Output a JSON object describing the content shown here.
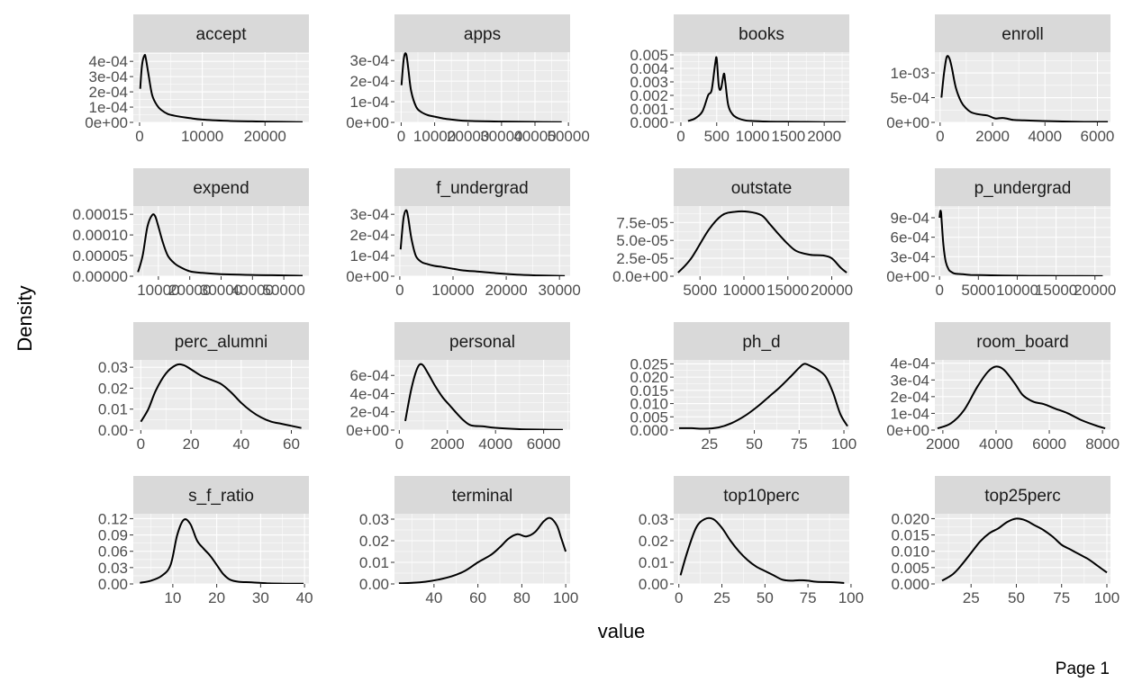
{
  "x_title": "value",
  "y_title": "Density",
  "page_label": "Page 1",
  "chart_data": [
    {
      "type": "line",
      "facet": "accept",
      "xlim": [
        -1000,
        27000
      ],
      "ylim": [
        0,
        0.00046
      ],
      "xticks": [
        0,
        10000,
        20000
      ],
      "xtick_labels": [
        "0",
        "10000",
        "20000"
      ],
      "yticks": [
        0,
        0.0001,
        0.0002,
        0.0003,
        0.0004
      ],
      "ytick_labels": [
        "0e+00",
        "1e-04",
        "2e-04",
        "3e-04",
        "4e-04"
      ],
      "x": [
        100,
        400,
        800,
        1000,
        1400,
        2000,
        2800,
        3500,
        4500,
        6000,
        8000,
        10000,
        14000,
        20000,
        26000
      ],
      "y": [
        0.00022,
        0.00038,
        0.00044,
        0.00042,
        0.00032,
        0.00018,
        0.00011,
        8e-05,
        5.5e-05,
        4e-05,
        2.8e-05,
        1.8e-05,
        1e-05,
        5e-06,
        2e-06
      ]
    },
    {
      "type": "line",
      "facet": "apps",
      "xlim": [
        -2000,
        50500
      ],
      "ylim": [
        0,
        0.00034
      ],
      "xticks": [
        0,
        10000,
        20000,
        30000,
        40000,
        50000
      ],
      "xtick_labels": [
        "0",
        "10000",
        "20000",
        "30000",
        "40000",
        "50000"
      ],
      "yticks": [
        0,
        0.0001,
        0.0002,
        0.0003
      ],
      "ytick_labels": [
        "0e+00",
        "1e-04",
        "2e-04",
        "3e-04"
      ],
      "x": [
        100,
        800,
        1500,
        2200,
        3000,
        4500,
        6000,
        8000,
        10000,
        13000,
        16000,
        20000,
        30000,
        40000,
        48000
      ],
      "y": [
        0.00018,
        0.00031,
        0.00033,
        0.00025,
        0.00015,
        7.5e-05,
        5e-05,
        3.5e-05,
        2.8e-05,
        1.8e-05,
        1.2e-05,
        7e-06,
        4e-06,
        2e-06,
        1e-06
      ]
    },
    {
      "type": "line",
      "facet": "books",
      "xlim": [
        -100,
        2350
      ],
      "ylim": [
        0,
        0.0052
      ],
      "xticks": [
        0,
        500,
        1000,
        1500,
        2000
      ],
      "xtick_labels": [
        "0",
        "500",
        "1000",
        "1500",
        "2000"
      ],
      "yticks": [
        0,
        0.001,
        0.002,
        0.003,
        0.004,
        0.005
      ],
      "ytick_labels": [
        "0.000",
        "0.001",
        "0.002",
        "0.003",
        "0.004",
        "0.005"
      ],
      "x": [
        100,
        200,
        300,
        380,
        430,
        480,
        500,
        530,
        560,
        600,
        620,
        660,
        720,
        800,
        900,
        1000,
        1200,
        1500,
        2000,
        2300
      ],
      "y": [
        0.0001,
        0.0003,
        0.0008,
        0.002,
        0.0024,
        0.0044,
        0.0047,
        0.0027,
        0.0025,
        0.0036,
        0.003,
        0.0013,
        0.0006,
        0.0003,
        0.00015,
        0.0001,
        6e-05,
        4e-05,
        2e-05,
        1e-05
      ]
    },
    {
      "type": "line",
      "facet": "enroll",
      "xlim": [
        -200,
        6500
      ],
      "ylim": [
        0,
        0.00142
      ],
      "xticks": [
        0,
        2000,
        4000,
        6000
      ],
      "xtick_labels": [
        "0",
        "2000",
        "4000",
        "6000"
      ],
      "yticks": [
        0,
        0.0005,
        0.001
      ],
      "ytick_labels": [
        "0e+00",
        "5e-04",
        "1e-03"
      ],
      "x": [
        50,
        150,
        250,
        350,
        450,
        600,
        800,
        1000,
        1200,
        1500,
        1800,
        2100,
        2400,
        2800,
        3200,
        3800,
        4500,
        5500,
        6400
      ],
      "y": [
        0.0005,
        0.001,
        0.00132,
        0.0013,
        0.0011,
        0.0007,
        0.00042,
        0.00028,
        0.0002,
        0.00016,
        0.00014,
        8e-05,
        9e-05,
        5e-05,
        4e-05,
        3e-05,
        2e-05,
        1e-05,
        1e-05
      ]
    },
    {
      "type": "line",
      "facet": "expend",
      "xlim": [
        2000,
        58000
      ],
      "ylim": [
        0,
        0.00017
      ],
      "xticks": [
        10000,
        20000,
        30000,
        40000,
        50000
      ],
      "xtick_labels": [
        "10000",
        "20000",
        "30000",
        "40000",
        "50000"
      ],
      "yticks": [
        0,
        5e-05,
        0.0001,
        0.00015
      ],
      "ytick_labels": [
        "0.00000",
        "0.00005",
        "0.00010",
        "0.00015"
      ],
      "x": [
        3500,
        5000,
        6500,
        8000,
        9000,
        10000,
        11500,
        13000,
        15000,
        17000,
        20000,
        24000,
        30000,
        40000,
        50000,
        56000
      ],
      "y": [
        1e-05,
        5e-05,
        0.00012,
        0.000148,
        0.000145,
        0.00012,
        8e-05,
        5e-05,
        3.2e-05,
        2.2e-05,
        1.2e-05,
        8e-06,
        5e-06,
        3e-06,
        2e-06,
        1e-06
      ]
    },
    {
      "type": "line",
      "facet": "f_undergrad",
      "xlim": [
        -1000,
        32000
      ],
      "ylim": [
        0,
        0.00034
      ],
      "xticks": [
        0,
        10000,
        20000,
        30000
      ],
      "xtick_labels": [
        "0",
        "10000",
        "20000",
        "30000"
      ],
      "yticks": [
        0,
        0.0001,
        0.0002,
        0.0003
      ],
      "ytick_labels": [
        "0e+00",
        "1e-04",
        "2e-04",
        "3e-04"
      ],
      "x": [
        150,
        700,
        1200,
        1600,
        2200,
        3000,
        4000,
        5000,
        6500,
        8000,
        10000,
        12000,
        15000,
        18000,
        22000,
        26000,
        31000
      ],
      "y": [
        0.00013,
        0.00028,
        0.00032,
        0.00028,
        0.00018,
        0.0001,
        7e-05,
        6e-05,
        5e-05,
        4.5e-05,
        3.6e-05,
        2.8e-05,
        2.2e-05,
        1.5e-05,
        8e-06,
        4e-06,
        1e-06
      ]
    },
    {
      "type": "line",
      "facet": "outstate",
      "xlim": [
        2000,
        22000
      ],
      "ylim": [
        0,
        9.8e-05
      ],
      "xticks": [
        5000,
        10000,
        15000,
        20000
      ],
      "xtick_labels": [
        "5000",
        "10000",
        "15000",
        "20000"
      ],
      "yticks": [
        0,
        2.5e-05,
        5e-05,
        7.5e-05
      ],
      "ytick_labels": [
        "0.0e+00",
        "2.5e-05",
        "5.0e-05",
        "7.5e-05"
      ],
      "x": [
        2500,
        4000,
        6000,
        7500,
        9000,
        10500,
        12000,
        13000,
        14000,
        15000,
        16000,
        17500,
        19000,
        20000,
        21000,
        21700
      ],
      "y": [
        5e-06,
        2.5e-05,
        6.5e-05,
        8.5e-05,
        9e-05,
        9e-05,
        8.5e-05,
        7.2e-05,
        5.8e-05,
        4.5e-05,
        3.5e-05,
        3e-05,
        2.9e-05,
        2.5e-05,
        1.2e-05,
        5e-06
      ]
    },
    {
      "type": "line",
      "facet": "p_undergrad",
      "xlim": [
        -600,
        22000
      ],
      "ylim": [
        0,
        0.00108
      ],
      "xticks": [
        0,
        5000,
        10000,
        15000,
        20000
      ],
      "xtick_labels": [
        "0",
        "5000",
        "10000",
        "15000",
        "20000"
      ],
      "yticks": [
        0,
        0.0003,
        0.0006,
        0.0009
      ],
      "ytick_labels": [
        "0e+00",
        "3e-04",
        "6e-04",
        "9e-04"
      ],
      "x": [
        0,
        100,
        200,
        300,
        500,
        800,
        1200,
        1600,
        2000,
        3000,
        4000,
        6000,
        8000,
        12000,
        16000,
        21000
      ],
      "y": [
        0.0009,
        0.001,
        0.00098,
        0.0008,
        0.00048,
        0.00022,
        0.0001,
        6e-05,
        4e-05,
        3e-05,
        2e-05,
        1.5e-05,
        1e-05,
        6e-06,
        4e-06,
        2e-06
      ]
    },
    {
      "type": "line",
      "facet": "perc_alumni",
      "xlim": [
        -3,
        67
      ],
      "ylim": [
        0,
        0.0335
      ],
      "xticks": [
        0,
        20,
        40,
        60
      ],
      "xtick_labels": [
        "0",
        "20",
        "40",
        "60"
      ],
      "yticks": [
        0,
        0.01,
        0.02,
        0.03
      ],
      "ytick_labels": [
        "0.00",
        "0.01",
        "0.02",
        "0.03"
      ],
      "x": [
        0,
        3,
        6,
        10,
        14,
        17,
        20,
        24,
        28,
        32,
        36,
        40,
        44,
        48,
        52,
        56,
        60,
        64
      ],
      "y": [
        0.004,
        0.01,
        0.019,
        0.027,
        0.031,
        0.031,
        0.029,
        0.026,
        0.024,
        0.022,
        0.018,
        0.013,
        0.009,
        0.006,
        0.004,
        0.003,
        0.002,
        0.001
      ]
    },
    {
      "type": "line",
      "facet": "personal",
      "xlim": [
        -200,
        7100
      ],
      "ylim": [
        0,
        0.00077
      ],
      "xticks": [
        0,
        2000,
        4000,
        6000
      ],
      "xtick_labels": [
        "0",
        "2000",
        "4000",
        "6000"
      ],
      "yticks": [
        0,
        0.0002,
        0.0004,
        0.0006
      ],
      "ytick_labels": [
        "0e+00",
        "2e-04",
        "4e-04",
        "6e-04"
      ],
      "x": [
        250,
        500,
        750,
        950,
        1200,
        1500,
        1800,
        2100,
        2400,
        2700,
        3000,
        3500,
        4000,
        5000,
        6000,
        6800
      ],
      "y": [
        0.0001,
        0.00045,
        0.00068,
        0.00072,
        0.00062,
        0.00048,
        0.00036,
        0.00027,
        0.00018,
        0.0001,
        5e-05,
        4e-05,
        2.5e-05,
        1e-05,
        5e-06,
        2e-06
      ]
    },
    {
      "type": "line",
      "facet": "ph_d",
      "xlim": [
        5,
        103
      ],
      "ylim": [
        0,
        0.0265
      ],
      "xticks": [
        25,
        50,
        75,
        100
      ],
      "xtick_labels": [
        "25",
        "50",
        "75",
        "100"
      ],
      "yticks": [
        0,
        0.005,
        0.01,
        0.015,
        0.02,
        0.025
      ],
      "ytick_labels": [
        "0.000",
        "0.005",
        "0.010",
        "0.015",
        "0.020",
        "0.025"
      ],
      "x": [
        8,
        15,
        22,
        30,
        37,
        45,
        52,
        58,
        64,
        70,
        75,
        78,
        82,
        86,
        90,
        94,
        98,
        102
      ],
      "y": [
        0.0007,
        0.0007,
        0.0005,
        0.001,
        0.0025,
        0.0055,
        0.009,
        0.0125,
        0.016,
        0.02,
        0.0235,
        0.025,
        0.024,
        0.0225,
        0.02,
        0.014,
        0.006,
        0.0015
      ]
    },
    {
      "type": "line",
      "facet": "room_board",
      "xlim": [
        1700,
        8300
      ],
      "ylim": [
        0,
        0.00042
      ],
      "xticks": [
        2000,
        4000,
        6000,
        8000
      ],
      "xtick_labels": [
        "2000",
        "4000",
        "6000",
        "8000"
      ],
      "yticks": [
        0,
        0.0001,
        0.0002,
        0.0003,
        0.0004
      ],
      "ytick_labels": [
        "0e+00",
        "1e-04",
        "2e-04",
        "3e-04",
        "4e-04"
      ],
      "x": [
        1800,
        2300,
        2800,
        3300,
        3700,
        4000,
        4300,
        4700,
        5000,
        5400,
        5800,
        6200,
        6700,
        7200,
        7700,
        8100
      ],
      "y": [
        1e-05,
        4e-05,
        0.00012,
        0.00026,
        0.00035,
        0.00038,
        0.00036,
        0.00028,
        0.00021,
        0.00017,
        0.000155,
        0.00013,
        0.0001,
        6e-05,
        3e-05,
        1e-05
      ]
    },
    {
      "type": "line",
      "facet": "s_f_ratio",
      "xlim": [
        1,
        41
      ],
      "ylim": [
        0,
        0.129
      ],
      "xticks": [
        10,
        20,
        30,
        40
      ],
      "xtick_labels": [
        "10",
        "20",
        "30",
        "40"
      ],
      "yticks": [
        0,
        0.03,
        0.06,
        0.09,
        0.12
      ],
      "ytick_labels": [
        "0.00",
        "0.03",
        "0.06",
        "0.09",
        "0.12"
      ],
      "x": [
        2.5,
        5,
        7.5,
        9.5,
        11,
        12.5,
        14,
        15.5,
        17,
        18.5,
        20,
        21.5,
        23,
        25,
        28,
        32,
        36,
        39.8
      ],
      "y": [
        0.002,
        0.006,
        0.015,
        0.035,
        0.09,
        0.118,
        0.11,
        0.08,
        0.065,
        0.052,
        0.035,
        0.018,
        0.008,
        0.004,
        0.003,
        0.001,
        0.0005,
        0.0005
      ]
    },
    {
      "type": "line",
      "facet": "terminal",
      "xlim": [
        22,
        102
      ],
      "ylim": [
        0,
        0.0325
      ],
      "xticks": [
        40,
        60,
        80,
        100
      ],
      "xtick_labels": [
        "40",
        "60",
        "80",
        "100"
      ],
      "yticks": [
        0,
        0.01,
        0.02,
        0.03
      ],
      "ytick_labels": [
        "0.00",
        "0.01",
        "0.02",
        "0.03"
      ],
      "x": [
        24,
        30,
        36,
        42,
        48,
        54,
        60,
        66,
        70,
        74,
        78,
        82,
        86,
        90,
        93,
        96,
        98,
        100
      ],
      "y": [
        0.0003,
        0.0005,
        0.001,
        0.002,
        0.0035,
        0.006,
        0.01,
        0.0135,
        0.017,
        0.021,
        0.023,
        0.022,
        0.024,
        0.029,
        0.0305,
        0.027,
        0.021,
        0.015
      ]
    },
    {
      "type": "line",
      "facet": "top10perc",
      "xlim": [
        -3,
        99
      ],
      "ylim": [
        0,
        0.0325
      ],
      "xticks": [
        0,
        25,
        50,
        75,
        100
      ],
      "xtick_labels": [
        "0",
        "25",
        "50",
        "75",
        "100"
      ],
      "yticks": [
        0,
        0.01,
        0.02,
        0.03
      ],
      "ytick_labels": [
        "0.00",
        "0.01",
        "0.02",
        "0.03"
      ],
      "x": [
        1,
        5,
        10,
        15,
        20,
        25,
        30,
        35,
        40,
        45,
        50,
        55,
        60,
        65,
        70,
        75,
        80,
        90,
        96
      ],
      "y": [
        0.004,
        0.015,
        0.026,
        0.03,
        0.03,
        0.026,
        0.02,
        0.015,
        0.011,
        0.008,
        0.006,
        0.004,
        0.002,
        0.0015,
        0.0017,
        0.0015,
        0.001,
        0.0008,
        0.0004
      ]
    },
    {
      "type": "line",
      "facet": "top25perc",
      "xlim": [
        5,
        102
      ],
      "ylim": [
        0,
        0.0215
      ],
      "xticks": [
        25,
        50,
        75,
        100
      ],
      "xtick_labels": [
        "25",
        "50",
        "75",
        "100"
      ],
      "yticks": [
        0,
        0.005,
        0.01,
        0.015,
        0.02
      ],
      "ytick_labels": [
        "0.000",
        "0.005",
        "0.010",
        "0.015",
        "0.020"
      ],
      "x": [
        9,
        15,
        20,
        25,
        30,
        35,
        40,
        45,
        50,
        55,
        60,
        65,
        70,
        75,
        80,
        85,
        90,
        95,
        100
      ],
      "y": [
        0.001,
        0.003,
        0.006,
        0.0095,
        0.013,
        0.0155,
        0.017,
        0.019,
        0.02,
        0.0195,
        0.018,
        0.0165,
        0.0145,
        0.012,
        0.0105,
        0.009,
        0.0075,
        0.0055,
        0.0035
      ]
    }
  ]
}
